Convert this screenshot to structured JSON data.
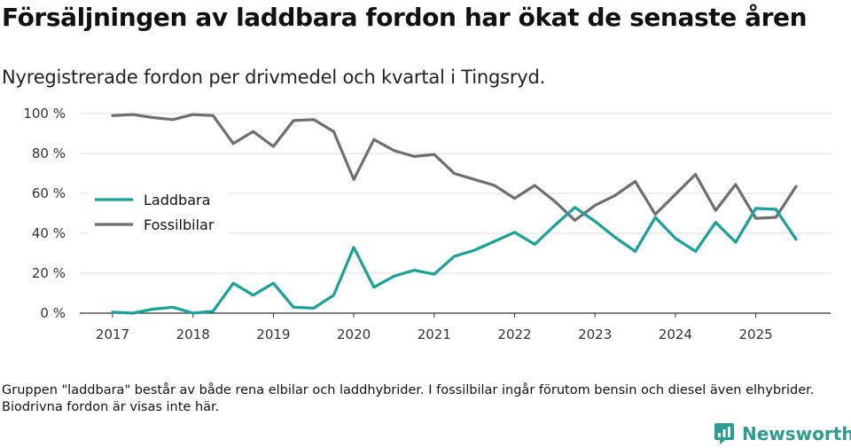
{
  "header": {
    "title": "Försäljningen av laddbara fordon har ökat de senaste åren",
    "subtitle": "Nyregistrerade fordon per drivmedel och kvartal i Tingsryd."
  },
  "footer": {
    "note": "Gruppen \"laddbara\" består av både rena elbilar och laddhybrider. I fossilbilar ingår förutom bensin och diesel även elhybrider. Biodrivna fordon är visas inte här.",
    "brand_name": "Newsworthy",
    "brand_icon": "newsworthy-logo-icon"
  },
  "colors": {
    "laddbara": "#16a39b",
    "fossil": "#6e6e73",
    "brand": "#2a9d8f"
  },
  "chart_data": {
    "type": "line",
    "title": "Försäljningen av laddbara fordon har ökat de senaste åren",
    "subtitle": "Nyregistrerade fordon per drivmedel och kvartal i Tingsryd.",
    "xlabel": "",
    "ylabel": "",
    "x": [
      "2017 Q1",
      "2017 Q2",
      "2017 Q3",
      "2017 Q4",
      "2018 Q1",
      "2018 Q2",
      "2018 Q3",
      "2018 Q4",
      "2019 Q1",
      "2019 Q2",
      "2019 Q3",
      "2019 Q4",
      "2020 Q1",
      "2020 Q2",
      "2020 Q3",
      "2020 Q4",
      "2021 Q1",
      "2021 Q2",
      "2021 Q3",
      "2021 Q4",
      "2022 Q1",
      "2022 Q2",
      "2022 Q3",
      "2022 Q4",
      "2023 Q1",
      "2023 Q2",
      "2023 Q3",
      "2023 Q4",
      "2024 Q1",
      "2024 Q2",
      "2024 Q3",
      "2024 Q4",
      "2025 Q1",
      "2025 Q2",
      "2025 Q3"
    ],
    "x_tick_labels": [
      "2017",
      "2018",
      "2019",
      "2020",
      "2021",
      "2022",
      "2023",
      "2024",
      "2025"
    ],
    "y_tick_labels": [
      "0 %",
      "20 %",
      "40 %",
      "60 %",
      "80 %",
      "100 %"
    ],
    "ylim": [
      0,
      100
    ],
    "grid": "horizontal",
    "legend_position": "left",
    "series": [
      {
        "name": "Laddbara",
        "color": "#16a39b",
        "values": [
          0.5,
          0,
          2,
          3,
          0,
          1,
          15,
          9,
          15,
          3,
          2.5,
          9,
          33,
          13,
          18.5,
          21.5,
          19.5,
          28.5,
          31.5,
          36,
          40.5,
          34.5,
          44,
          53,
          46,
          38,
          31,
          48,
          37.5,
          31,
          45.5,
          35.5,
          52.5,
          52,
          37
        ]
      },
      {
        "name": "Fossilbilar",
        "color": "#6e6e73",
        "values": [
          99,
          99.5,
          98,
          97,
          99.5,
          99,
          85,
          91,
          83.5,
          96.5,
          97,
          91,
          67,
          87,
          81.5,
          78.5,
          79.5,
          70,
          67,
          64,
          57.5,
          64,
          56,
          46.5,
          54,
          59,
          66,
          49.5,
          59.5,
          69.5,
          51.5,
          64.5,
          47.5,
          48,
          63.5
        ]
      }
    ]
  }
}
